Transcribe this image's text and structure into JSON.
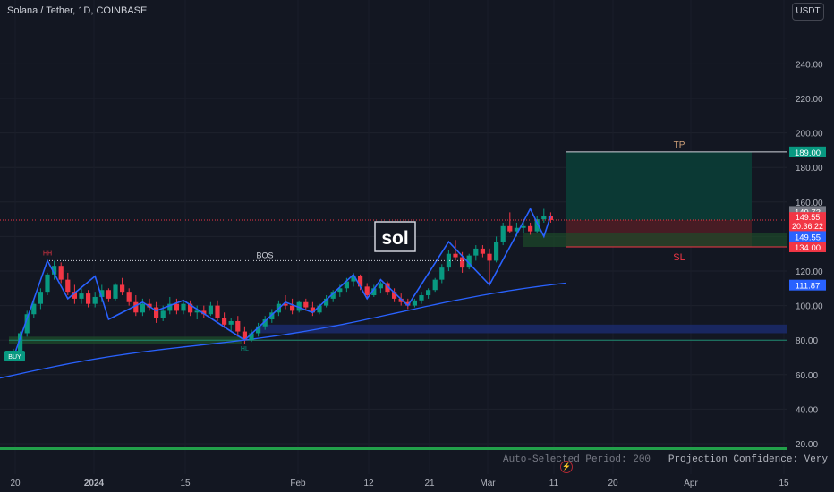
{
  "header": {
    "title": "Solana / Tether, 1D, COINBASE"
  },
  "currency_button": {
    "label": "USDT"
  },
  "colors": {
    "background": "#131722",
    "up": "#089981",
    "down": "#f23645",
    "zigzag": "#2962ff",
    "ma": "#2962ff",
    "tp_zone": "#0b3b36",
    "sl_zone": "#4a1c25"
  },
  "chart_data": {
    "type": "candlestick",
    "y_axis": {
      "min": 20,
      "max": 240,
      "ticks": [
        "20.00",
        "40.00",
        "60.00",
        "80.00",
        "100.00",
        "120.00",
        "140.00",
        "160.00",
        "180.00",
        "200.00",
        "220.00",
        "240.00"
      ]
    },
    "x_axis": {
      "ticks": [
        "20",
        "2024",
        "15",
        "Feb",
        "12",
        "21",
        "Mar",
        "11",
        "20",
        "Apr",
        "15"
      ]
    },
    "candles": [
      [
        70.0,
        75.0,
        68.0,
        73.0
      ],
      [
        73.0,
        85.0,
        72.0,
        84.0
      ],
      [
        84.0,
        97.0,
        82.0,
        95.0
      ],
      [
        95.0,
        103.0,
        93.0,
        101.0
      ],
      [
        101.0,
        110.0,
        98.0,
        108.0
      ],
      [
        108.0,
        119.0,
        106.0,
        118.0
      ],
      [
        118.0,
        126.0,
        115.0,
        123.0
      ],
      [
        123.0,
        125.0,
        113.0,
        115.0
      ],
      [
        115.0,
        119.0,
        106.0,
        108.0
      ],
      [
        108.0,
        112.0,
        101.0,
        104.0
      ],
      [
        104.0,
        110.0,
        101.0,
        107.0
      ],
      [
        107.0,
        109.0,
        99.0,
        101.0
      ],
      [
        101.0,
        108.0,
        99.0,
        105.0
      ],
      [
        105.0,
        112.0,
        102.0,
        109.0
      ],
      [
        109.0,
        110.0,
        102.0,
        104.0
      ],
      [
        104.0,
        113.0,
        103.0,
        112.0
      ],
      [
        112.0,
        116.0,
        106.0,
        108.0
      ],
      [
        108.0,
        110.0,
        100.0,
        102.0
      ],
      [
        102.0,
        106.0,
        94.0,
        96.0
      ],
      [
        96.0,
        104.0,
        94.0,
        101.0
      ],
      [
        101.0,
        104.0,
        97.0,
        99.0
      ],
      [
        99.0,
        102.0,
        90.0,
        93.0
      ],
      [
        93.0,
        100.0,
        91.0,
        97.0
      ],
      [
        97.0,
        105.0,
        95.0,
        101.0
      ],
      [
        101.0,
        104.0,
        95.0,
        97.0
      ],
      [
        97.0,
        103.0,
        95.0,
        101.0
      ],
      [
        101.0,
        103.0,
        94.0,
        96.0
      ],
      [
        96.0,
        100.0,
        92.0,
        97.0
      ],
      [
        97.0,
        100.0,
        93.0,
        95.0
      ],
      [
        95.0,
        102.0,
        94.0,
        100.0
      ],
      [
        100.0,
        103.0,
        91.0,
        93.0
      ],
      [
        93.0,
        96.0,
        87.0,
        89.0
      ],
      [
        89.0,
        93.0,
        85.0,
        91.0
      ],
      [
        91.0,
        94.0,
        82.0,
        85.0
      ],
      [
        85.0,
        88.0,
        78.0,
        80.0
      ],
      [
        80.0,
        86.0,
        79.0,
        84.0
      ],
      [
        84.0,
        90.0,
        82.0,
        88.0
      ],
      [
        88.0,
        94.0,
        86.0,
        92.0
      ],
      [
        92.0,
        98.0,
        90.0,
        96.0
      ],
      [
        96.0,
        103.0,
        94.0,
        101.0
      ],
      [
        101.0,
        106.0,
        98.0,
        100.0
      ],
      [
        100.0,
        104.0,
        95.0,
        97.0
      ],
      [
        97.0,
        103.0,
        96.0,
        102.0
      ],
      [
        102.0,
        104.0,
        97.0,
        99.0
      ],
      [
        99.0,
        102.0,
        94.0,
        96.0
      ],
      [
        96.0,
        101.0,
        95.0,
        100.0
      ],
      [
        100.0,
        106.0,
        99.0,
        104.0
      ],
      [
        104.0,
        109.0,
        102.0,
        108.0
      ],
      [
        108.0,
        112.0,
        105.0,
        110.0
      ],
      [
        110.0,
        116.0,
        108.0,
        114.0
      ],
      [
        114.0,
        119.0,
        111.0,
        117.0
      ],
      [
        117.0,
        118.0,
        109.0,
        111.0
      ],
      [
        111.0,
        113.0,
        104.0,
        106.0
      ],
      [
        106.0,
        112.0,
        105.0,
        110.0
      ],
      [
        110.0,
        114.0,
        107.0,
        113.0
      ],
      [
        113.0,
        114.0,
        106.0,
        108.0
      ],
      [
        108.0,
        110.0,
        102.0,
        104.0
      ],
      [
        104.0,
        107.0,
        100.0,
        102.0
      ],
      [
        102.0,
        104.0,
        98.0,
        100.0
      ],
      [
        100.0,
        104.0,
        99.0,
        103.0
      ],
      [
        103.0,
        108.0,
        101.0,
        106.0
      ],
      [
        106.0,
        110.0,
        104.0,
        109.0
      ],
      [
        109.0,
        116.0,
        108.0,
        115.0
      ],
      [
        115.0,
        124.0,
        113.0,
        122.0
      ],
      [
        122.0,
        132.0,
        120.0,
        130.0
      ],
      [
        130.0,
        138.0,
        126.0,
        128.0
      ],
      [
        128.0,
        131.0,
        119.0,
        122.0
      ],
      [
        122.0,
        130.0,
        121.0,
        129.0
      ],
      [
        129.0,
        135.0,
        126.0,
        133.0
      ],
      [
        133.0,
        135.0,
        128.0,
        130.0
      ],
      [
        130.0,
        133.0,
        112.0,
        126.0
      ],
      [
        126.0,
        140.0,
        125.0,
        137.0
      ],
      [
        137.0,
        148.0,
        135.0,
        146.0
      ],
      [
        146.0,
        154.0,
        142.0,
        143.0
      ],
      [
        143.0,
        148.0,
        140.0,
        145.0
      ],
      [
        145.0,
        150.0,
        142.0,
        146.0
      ],
      [
        146.0,
        148.0,
        141.0,
        143.0
      ],
      [
        143.0,
        152.0,
        142.0,
        150.0
      ],
      [
        150.0,
        156.0,
        148.0,
        152.0
      ],
      [
        152.0,
        154.0,
        148.0,
        149.55
      ]
    ],
    "moving_average": {
      "label": "111.87",
      "value": 111.87
    },
    "zigzag": [
      [
        "start",
        70
      ],
      [
        "HH",
        126
      ],
      [
        "",
        104
      ],
      [
        "",
        117
      ],
      [
        "",
        92
      ],
      [
        "",
        102
      ],
      [
        "",
        97
      ],
      [
        "",
        103
      ],
      [
        "HL",
        80
      ],
      [
        "",
        102
      ],
      [
        "",
        96
      ],
      [
        "",
        118
      ],
      [
        "",
        104
      ],
      [
        "",
        115
      ],
      [
        "",
        100
      ],
      [
        "",
        137
      ],
      [
        "",
        112
      ],
      [
        "",
        156
      ],
      [
        "",
        140
      ],
      [
        "",
        152
      ]
    ],
    "levels": {
      "bos": {
        "label": "BOS",
        "value": 126
      },
      "tp": {
        "label": "TP",
        "value": 189.0,
        "price_label": "189.00"
      },
      "entry": {
        "value": 149.55,
        "price_label": "149.55"
      },
      "sl": {
        "label": "SL",
        "value": 134.0,
        "price_label": "134.00"
      }
    },
    "last_price": {
      "high_label": "149.73",
      "price": "149.55",
      "countdown": "20:36:22"
    },
    "pivot_labels": {
      "hh": "HH",
      "hl": "HL",
      "buy": "BUY"
    },
    "watermark": "sol",
    "zones": [
      {
        "name": "upper-blue-zone",
        "from": 84,
        "to": 89
      },
      {
        "name": "green-support-zone",
        "from": 78,
        "to": 82
      }
    ]
  },
  "footer": {
    "period_text": "Auto-Selected Period: 200",
    "confidence_text": "Projection Confidence: Very Strong"
  }
}
